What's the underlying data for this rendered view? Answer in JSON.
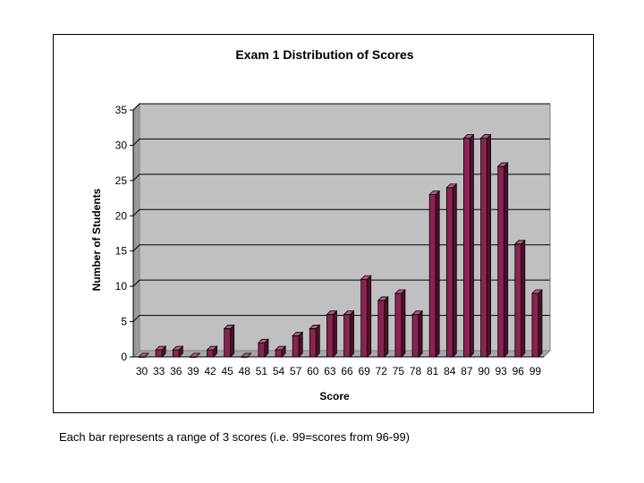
{
  "chart_data": {
    "type": "bar",
    "title": "Exam 1 Distribution of Scores",
    "xlabel": "Score",
    "ylabel": "Number of Students",
    "categories": [
      "30",
      "33",
      "36",
      "39",
      "42",
      "45",
      "48",
      "51",
      "54",
      "57",
      "60",
      "63",
      "66",
      "69",
      "72",
      "75",
      "78",
      "81",
      "84",
      "87",
      "90",
      "93",
      "96",
      "99"
    ],
    "values": [
      0,
      1,
      1,
      0,
      1,
      4,
      0,
      2,
      1,
      3,
      4,
      6,
      6,
      11,
      8,
      9,
      6,
      23,
      24,
      31,
      31,
      27,
      16,
      9
    ],
    "ylim": [
      0,
      35
    ],
    "yticks": [
      "0",
      "5",
      "10",
      "15",
      "20",
      "25",
      "30",
      "35"
    ],
    "grid": true,
    "colors": {
      "bar_front": "#8B2252",
      "bar_side": "#4E0F2E",
      "bar_top": "#B35A82",
      "plot_bg": "#C0C0C0",
      "wall_side": "#9A9A9A"
    }
  },
  "caption": "Each bar represents a range of 3 scores (i.e. 99=scores from 96-99)"
}
